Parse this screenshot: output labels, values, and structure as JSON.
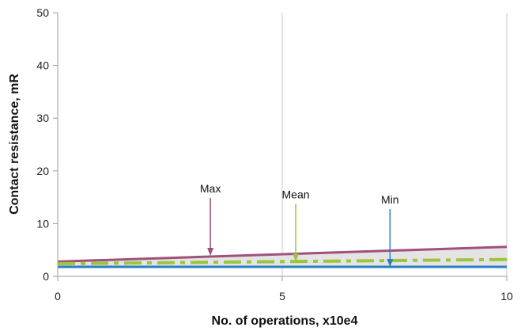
{
  "chart_data": {
    "type": "line",
    "title": "",
    "xlabel": "No. of operations, x10e4",
    "ylabel": "Contact resistance, mR",
    "xlim": [
      0,
      10
    ],
    "ylim": [
      0,
      50
    ],
    "x_ticks": [
      0,
      5,
      10
    ],
    "y_ticks": [
      0,
      10,
      20,
      30,
      40,
      50
    ],
    "grid": {
      "vertical_at_x": [
        5,
        10
      ],
      "horizontal": false
    },
    "legend": "none",
    "band_fill": {
      "between": [
        "Max",
        "Min"
      ],
      "color": "#e4e4e4"
    },
    "series": [
      {
        "name": "Max",
        "x": [
          0,
          10
        ],
        "y": [
          2.8,
          5.6
        ],
        "color": "#a0507a",
        "style": "solid"
      },
      {
        "name": "Mean",
        "x": [
          0,
          10
        ],
        "y": [
          2.4,
          3.2
        ],
        "color": "#9ac53c",
        "style": "dash-dot"
      },
      {
        "name": "Min",
        "x": [
          0,
          10
        ],
        "y": [
          1.8,
          1.8
        ],
        "color": "#2a7fc0",
        "style": "solid"
      }
    ],
    "annotations": [
      {
        "text": "Max",
        "x": 3.4,
        "y": 3.9,
        "color": "#a0507a"
      },
      {
        "text": "Mean",
        "x": 5.3,
        "y": 2.8,
        "color": "#9ac53c"
      },
      {
        "text": "Min",
        "x": 7.4,
        "y": 1.8,
        "color": "#2a7fc0"
      }
    ]
  }
}
